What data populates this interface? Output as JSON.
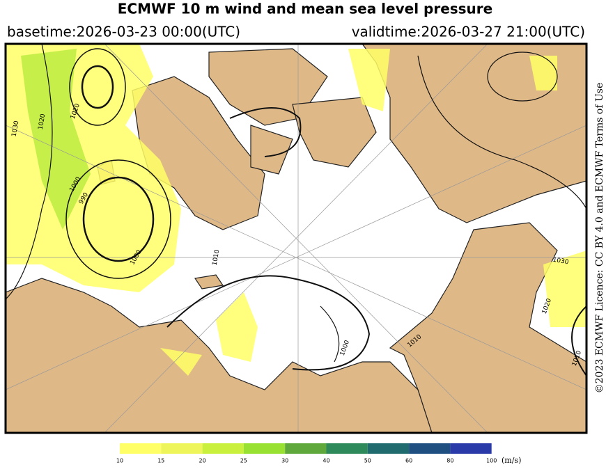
{
  "header": {
    "title": "ECMWF 10 m wind and mean sea level pressure",
    "basetime": "basetime:2026-03-23 00:00(UTC)",
    "validtime": "validtime:2026-03-27 21:00(UTC)"
  },
  "licence": "©2023 ECMWF Licence: CC BY 4.0 and ECMWF Terms of Use",
  "map": {
    "contour_labels": [
      "1030",
      "1020",
      "1020",
      "1000",
      "990",
      "1000",
      "1010",
      "1000",
      "1030",
      "1020",
      "1010",
      "1010"
    ]
  },
  "colorbar": {
    "ticks": [
      "10",
      "15",
      "20",
      "25",
      "30",
      "40",
      "50",
      "60",
      "80",
      "100"
    ],
    "colors": [
      "#ffff66",
      "#eef55a",
      "#c8f03c",
      "#98e032",
      "#5fa83c",
      "#2e8a5a",
      "#1f6b6e",
      "#1e4f80",
      "#2a3aa8"
    ],
    "unit": "(m/s)"
  }
}
